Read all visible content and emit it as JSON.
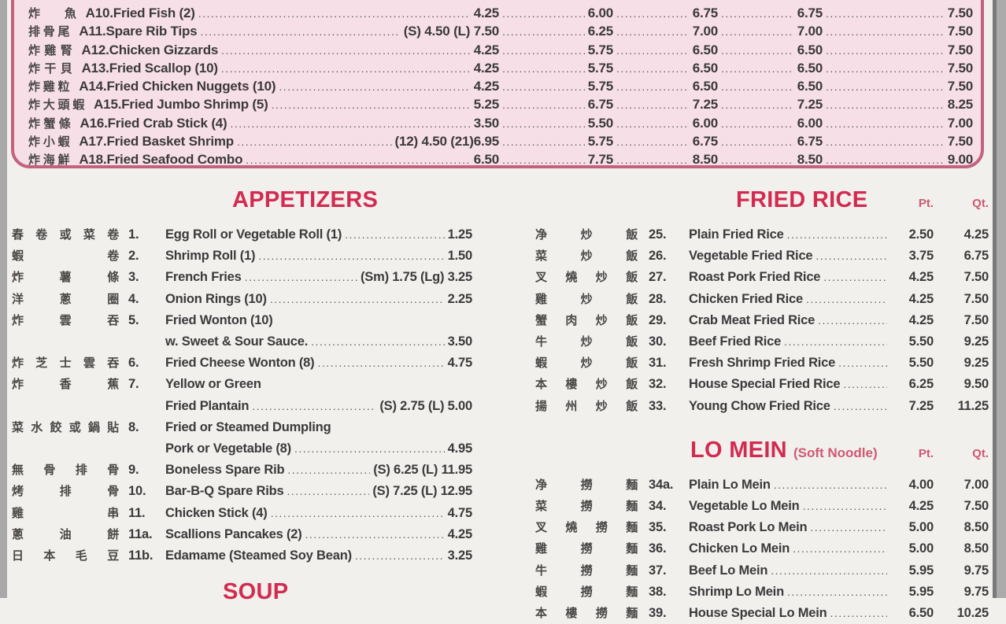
{
  "colors": {
    "heading_red": "#d22b50",
    "ptqt_red": "#cf5872",
    "box_bg": "#f7dfe8",
    "box_border": "#c2627f",
    "text": "#3b393a"
  },
  "top_box": {
    "items": [
      {
        "cn": "炸 魚",
        "code": "A10.",
        "name": "Fried Fish (2)",
        "prices": [
          "4.25",
          "6.00",
          "6.75",
          "6.75",
          "7.50"
        ]
      },
      {
        "cn": "排 骨 尾",
        "code": "A11.",
        "name": "Spare Rib Tips",
        "prices": [
          "(S) 4.50 (L) 7.50",
          "6.25",
          "7.00",
          "7.00",
          "7.50"
        ]
      },
      {
        "cn": "炸 雞 腎",
        "code": "A12.",
        "name": "Chicken Gizzards",
        "prices": [
          "4.25",
          "5.75",
          "6.50",
          "6.50",
          "7.50"
        ]
      },
      {
        "cn": "炸 干 貝",
        "code": "A13.",
        "name": "Fried Scallop (10)",
        "prices": [
          "4.25",
          "5.75",
          "6.50",
          "6.50",
          "7.50"
        ]
      },
      {
        "cn": "炸 雞 粒",
        "code": "A14.",
        "name": "Fried Chicken Nuggets (10)",
        "prices": [
          "4.25",
          "5.75",
          "6.50",
          "6.50",
          "7.50"
        ]
      },
      {
        "cn": "炸 大 頭 蝦",
        "code": "A15.",
        "name": "Fried Jumbo Shrimp (5)",
        "prices": [
          "5.25",
          "6.75",
          "7.25",
          "7.25",
          "8.25"
        ]
      },
      {
        "cn": "炸 蟹 條",
        "code": "A16.",
        "name": "Fried Crab Stick (4)",
        "prices": [
          "3.50",
          "5.50",
          "6.00",
          "6.00",
          "7.00"
        ]
      },
      {
        "cn": "炸 小 蝦",
        "code": "A17.",
        "name": "Fried Basket Shrimp",
        "prices": [
          "(12) 4.50 (21)6.95",
          "5.75",
          "6.75",
          "6.75",
          "7.50"
        ]
      },
      {
        "cn": "炸 海 鮮",
        "code": "A18.",
        "name": "Fried Seafood Combo",
        "prices": [
          "6.50",
          "7.75",
          "8.50",
          "8.50",
          "9.00"
        ]
      }
    ]
  },
  "appetizers": {
    "title": "APPETIZERS",
    "items": [
      {
        "cn": "春 卷 或 菜 卷",
        "num": "1.",
        "lines": [
          {
            "text": "Egg Roll or Vegetable Roll (1)",
            "price": "1.25"
          }
        ]
      },
      {
        "cn": "蝦 卷",
        "num": "2.",
        "lines": [
          {
            "text": "Shrimp Roll (1)",
            "price": "1.50"
          }
        ]
      },
      {
        "cn": "炸 薯 條",
        "num": "3.",
        "lines": [
          {
            "text": "French Fries",
            "price": "(Sm) 1.75 (Lg) 3.25"
          }
        ]
      },
      {
        "cn": "洋 蔥 圈",
        "num": "4.",
        "lines": [
          {
            "text": "Onion Rings (10)",
            "price": "2.25"
          }
        ]
      },
      {
        "cn": "炸 雲 吞",
        "num": "5.",
        "lines": [
          {
            "text": "Fried Wonton (10)"
          },
          {
            "text": "w. Sweet & Sour Sauce.",
            "price": "3.50"
          }
        ]
      },
      {
        "cn": "炸 芝 士 雲 吞",
        "num": "6.",
        "lines": [
          {
            "text": "Fried Cheese Wonton (8)",
            "price": "4.75"
          }
        ]
      },
      {
        "cn": "炸 香 蕉",
        "num": "7.",
        "lines": [
          {
            "text": "Yellow or Green"
          },
          {
            "text": "Fried Plantain",
            "price": "(S) 2.75 (L)  5.00"
          }
        ]
      },
      {
        "cn": "菜 水 餃 或 鍋 貼",
        "num": "8.",
        "lines": [
          {
            "text": "Fried or Steamed Dumpling"
          },
          {
            "text": "Pork or Vegetable (8)",
            "price": "4.95"
          }
        ]
      },
      {
        "cn": "無 骨 排 骨",
        "num": "9.",
        "lines": [
          {
            "text": "Boneless Spare Rib",
            "price": "(S) 6.25 (L) 11.95"
          }
        ]
      },
      {
        "cn": "烤 排 骨",
        "num": "10.",
        "lines": [
          {
            "text": "Bar-B-Q Spare Ribs",
            "price": "(S) 7.25 (L) 12.95"
          }
        ]
      },
      {
        "cn": "雞 串",
        "num": "11.",
        "lines": [
          {
            "text": "Chicken Stick (4)",
            "price": "4.75"
          }
        ]
      },
      {
        "cn": "蔥 油 餅",
        "num": "11a.",
        "lines": [
          {
            "text": "Scallions Pancakes (2)",
            "price": "4.25"
          }
        ]
      },
      {
        "cn": "日 本 毛 豆",
        "num": "11b.",
        "lines": [
          {
            "text": "Edamame (Steamed Soy Bean)",
            "price": "3.25"
          }
        ]
      }
    ]
  },
  "soup": {
    "title": "SOUP"
  },
  "fried_rice": {
    "title": "FRIED RICE",
    "pt_label": "Pt.",
    "qt_label": "Qt.",
    "items": [
      {
        "cn": "净 炒 飯",
        "num": "25.",
        "name": "Plain Fried Rice",
        "pt": "2.50",
        "qt": "4.25"
      },
      {
        "cn": "菜 炒 飯",
        "num": "26.",
        "name": "Vegetable Fried Rice",
        "pt": "3.75",
        "qt": "6.75"
      },
      {
        "cn": "叉 燒 炒 飯",
        "num": "27.",
        "name": "Roast Pork Fried Rice",
        "pt": "4.25",
        "qt": "7.50"
      },
      {
        "cn": "雞 炒 飯",
        "num": "28.",
        "name": "Chicken Fried Rice",
        "pt": "4.25",
        "qt": "7.50"
      },
      {
        "cn": "蟹 肉 炒 飯",
        "num": "29.",
        "name": "Crab Meat Fried Rice",
        "pt": "4.25",
        "qt": "7.50"
      },
      {
        "cn": "牛 炒 飯",
        "num": "30.",
        "name": "Beef Fried Rice",
        "pt": "5.50",
        "qt": "9.25"
      },
      {
        "cn": "蝦 炒 飯",
        "num": "31.",
        "name": "Fresh Shrimp Fried Rice",
        "pt": "5.50",
        "qt": "9.25"
      },
      {
        "cn": "本 樓 炒 飯",
        "num": "32.",
        "name": "House Special Fried Rice",
        "pt": "6.25",
        "qt": "9.50"
      },
      {
        "cn": "揚 州 炒 飯",
        "num": "33.",
        "name": "Young Chow Fried Rice",
        "pt": "7.25",
        "qt": "11.25"
      }
    ]
  },
  "lo_mein": {
    "title": "LO MEIN",
    "subtitle": "(Soft Noodle)",
    "pt_label": "Pt.",
    "qt_label": "Qt.",
    "items": [
      {
        "cn": "净 撈 麵",
        "num": "34a.",
        "name": "Plain Lo Mein",
        "pt": "4.00",
        "qt": "7.00"
      },
      {
        "cn": "菜 撈 麵",
        "num": "34.",
        "name": "Vegetable Lo Mein",
        "pt": "4.25",
        "qt": "7.50"
      },
      {
        "cn": "叉 燒 撈 麵",
        "num": "35.",
        "name": "Roast Pork Lo Mein",
        "pt": "5.00",
        "qt": "8.50"
      },
      {
        "cn": "雞 撈 麵",
        "num": "36.",
        "name": "Chicken Lo Mein",
        "pt": "5.00",
        "qt": "8.50"
      },
      {
        "cn": "牛 撈 麵",
        "num": "37.",
        "name": "Beef Lo Mein",
        "pt": "5.95",
        "qt": "9.75"
      },
      {
        "cn": "蝦 撈 麵",
        "num": "38.",
        "name": "Shrimp Lo Mein",
        "pt": "5.95",
        "qt": "9.75"
      },
      {
        "cn": "本 樓 撈 麵",
        "num": "39.",
        "name": "House Special Lo Mein",
        "pt": "6.50",
        "qt": "10.25"
      }
    ]
  }
}
